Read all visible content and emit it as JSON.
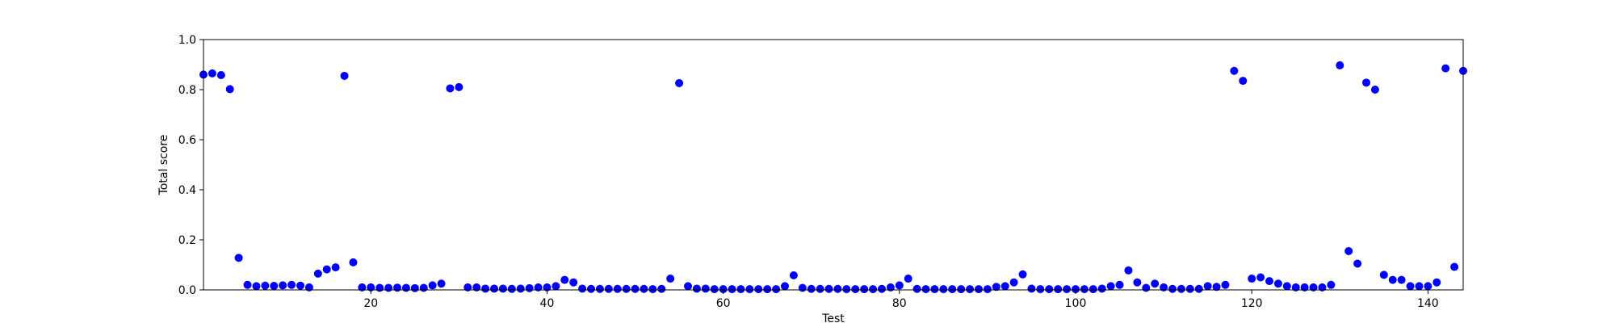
{
  "chart_data": {
    "type": "scatter",
    "xlabel": "Test",
    "ylabel": "Total score",
    "xlim": [
      1,
      144
    ],
    "ylim": [
      0.0,
      1.0
    ],
    "xticks": [
      20,
      40,
      60,
      80,
      100,
      120,
      140
    ],
    "xtick_labels": [
      "20",
      "40",
      "60",
      "80",
      "100",
      "120",
      "140"
    ],
    "yticks": [
      0.0,
      0.2,
      0.4,
      0.6,
      0.8,
      1.0
    ],
    "ytick_labels": [
      "0.0",
      "0.2",
      "0.4",
      "0.6",
      "0.8",
      "1.0"
    ],
    "grid": false,
    "marker_color": "#0000ff",
    "series": [
      {
        "x": [
          1,
          2,
          3,
          4,
          5,
          6,
          7,
          8,
          9,
          10,
          11,
          12,
          13,
          14,
          15,
          16,
          17,
          18,
          19,
          20,
          21,
          22,
          23,
          24,
          25,
          26,
          27,
          28,
          29,
          30,
          31,
          32,
          33,
          34,
          35,
          36,
          37,
          38,
          39,
          40,
          41,
          42,
          43,
          44,
          45,
          46,
          47,
          48,
          49,
          50,
          51,
          52,
          53,
          54,
          55,
          56,
          57,
          58,
          59,
          60,
          61,
          62,
          63,
          64,
          65,
          66,
          67,
          68,
          69,
          70,
          71,
          72,
          73,
          74,
          75,
          76,
          77,
          78,
          79,
          80,
          81,
          82,
          83,
          84,
          85,
          86,
          87,
          88,
          89,
          90,
          91,
          92,
          93,
          94,
          95,
          96,
          97,
          98,
          99,
          100,
          101,
          102,
          103,
          104,
          105,
          106,
          107,
          108,
          109,
          110,
          111,
          112,
          113,
          114,
          115,
          116,
          117,
          118,
          119,
          120,
          121,
          122,
          123,
          124,
          125,
          126,
          127,
          128,
          129,
          130,
          131,
          132,
          133,
          134,
          135,
          136,
          137,
          138,
          139,
          140,
          141,
          142,
          143,
          144
        ],
        "y": [
          0.86,
          0.865,
          0.858,
          0.802,
          0.128,
          0.02,
          0.015,
          0.017,
          0.016,
          0.018,
          0.02,
          0.017,
          0.01,
          0.065,
          0.082,
          0.09,
          0.855,
          0.11,
          0.01,
          0.01,
          0.008,
          0.008,
          0.009,
          0.008,
          0.007,
          0.008,
          0.018,
          0.025,
          0.805,
          0.81,
          0.01,
          0.01,
          0.005,
          0.005,
          0.005,
          0.004,
          0.005,
          0.007,
          0.01,
          0.01,
          0.015,
          0.04,
          0.03,
          0.005,
          0.004,
          0.004,
          0.004,
          0.004,
          0.004,
          0.004,
          0.004,
          0.003,
          0.004,
          0.045,
          0.826,
          0.015,
          0.005,
          0.005,
          0.003,
          0.003,
          0.003,
          0.003,
          0.003,
          0.003,
          0.003,
          0.003,
          0.015,
          0.058,
          0.008,
          0.004,
          0.004,
          0.004,
          0.004,
          0.003,
          0.003,
          0.003,
          0.003,
          0.004,
          0.01,
          0.018,
          0.045,
          0.004,
          0.003,
          0.003,
          0.003,
          0.003,
          0.003,
          0.003,
          0.003,
          0.003,
          0.012,
          0.015,
          0.03,
          0.062,
          0.005,
          0.003,
          0.003,
          0.003,
          0.003,
          0.003,
          0.003,
          0.003,
          0.005,
          0.015,
          0.02,
          0.078,
          0.03,
          0.008,
          0.025,
          0.01,
          0.004,
          0.004,
          0.004,
          0.004,
          0.015,
          0.012,
          0.02,
          0.875,
          0.835,
          0.045,
          0.05,
          0.035,
          0.025,
          0.015,
          0.01,
          0.01,
          0.01,
          0.01,
          0.02,
          0.897,
          0.155,
          0.105,
          0.828,
          0.8,
          0.06,
          0.04,
          0.04,
          0.015,
          0.015,
          0.015,
          0.03,
          0.885,
          0.092,
          0.875
        ]
      }
    ]
  }
}
